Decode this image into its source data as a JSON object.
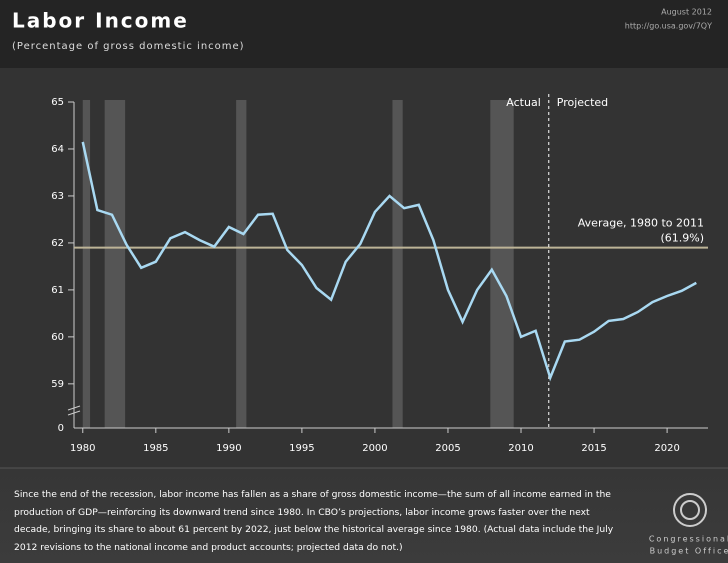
{
  "header": {
    "title": "Labor Income",
    "subtitle": "(Percentage of gross domestic income)",
    "date": "August 2012",
    "url": "http://go.usa.gov/7QY"
  },
  "chart_data": {
    "type": "line",
    "x": [
      1980,
      1981,
      1982,
      1983,
      1984,
      1985,
      1986,
      1987,
      1988,
      1989,
      1990,
      1991,
      1992,
      1993,
      1994,
      1995,
      1996,
      1997,
      1998,
      1999,
      2000,
      2001,
      2002,
      2003,
      2004,
      2005,
      2006,
      2007,
      2008,
      2009,
      2010,
      2011,
      2012,
      2013,
      2014,
      2015,
      2016,
      2017,
      2018,
      2019,
      2020,
      2021,
      2022
    ],
    "series": [
      {
        "name": "Labor Income",
        "color": "#a9d9f2",
        "values": [
          64.15,
          62.7,
          62.6,
          61.96,
          61.47,
          61.6,
          62.1,
          62.23,
          62.06,
          61.92,
          62.34,
          62.19,
          62.6,
          62.62,
          61.85,
          61.53,
          61.04,
          60.79,
          61.6,
          61.98,
          62.66,
          63.0,
          62.74,
          62.81,
          62.06,
          61.0,
          60.32,
          61.0,
          61.43,
          60.87,
          60.0,
          60.13,
          59.13,
          59.9,
          59.94,
          60.11,
          60.34,
          60.38,
          60.53,
          60.74,
          60.87,
          60.98,
          61.15
        ]
      }
    ],
    "xlim": [
      1979.4,
      2022.8
    ],
    "xticks": [
      1980,
      1985,
      1990,
      1995,
      2000,
      2005,
      2010,
      2015,
      2020
    ],
    "ylim": [
      58.06,
      65
    ],
    "yticks": [
      59,
      60,
      61,
      62,
      63,
      64,
      65
    ],
    "y_break_tick": 0,
    "recessions": [
      [
        1980.0,
        1980.5
      ],
      [
        1981.5,
        1982.9
      ],
      [
        1990.5,
        1991.2
      ],
      [
        2001.2,
        2001.9
      ],
      [
        2007.9,
        2009.5
      ]
    ],
    "average": {
      "value": 61.9,
      "label": "Average, 1980 to 2011",
      "value_label": "(61.9%)",
      "color": "#bdb497"
    },
    "divider": {
      "x": 2011.9,
      "left_label": "Actual",
      "right_label": "Projected"
    }
  },
  "footnote": "Since the end of the recession, labor income has fallen as a share of gross domestic income—the sum of all income earned in the production of GDP—reinforcing its downward trend since 1980. In CBO’s projections, labor income grows faster over the next decade, bringing its share to about 61 percent by 2022, just below the historical average since 1980. (Actual data include the July 2012 revisions to the national income and product accounts; projected data do not.)",
  "logo": {
    "line1": "Congressional",
    "line2": "Budget Office"
  }
}
